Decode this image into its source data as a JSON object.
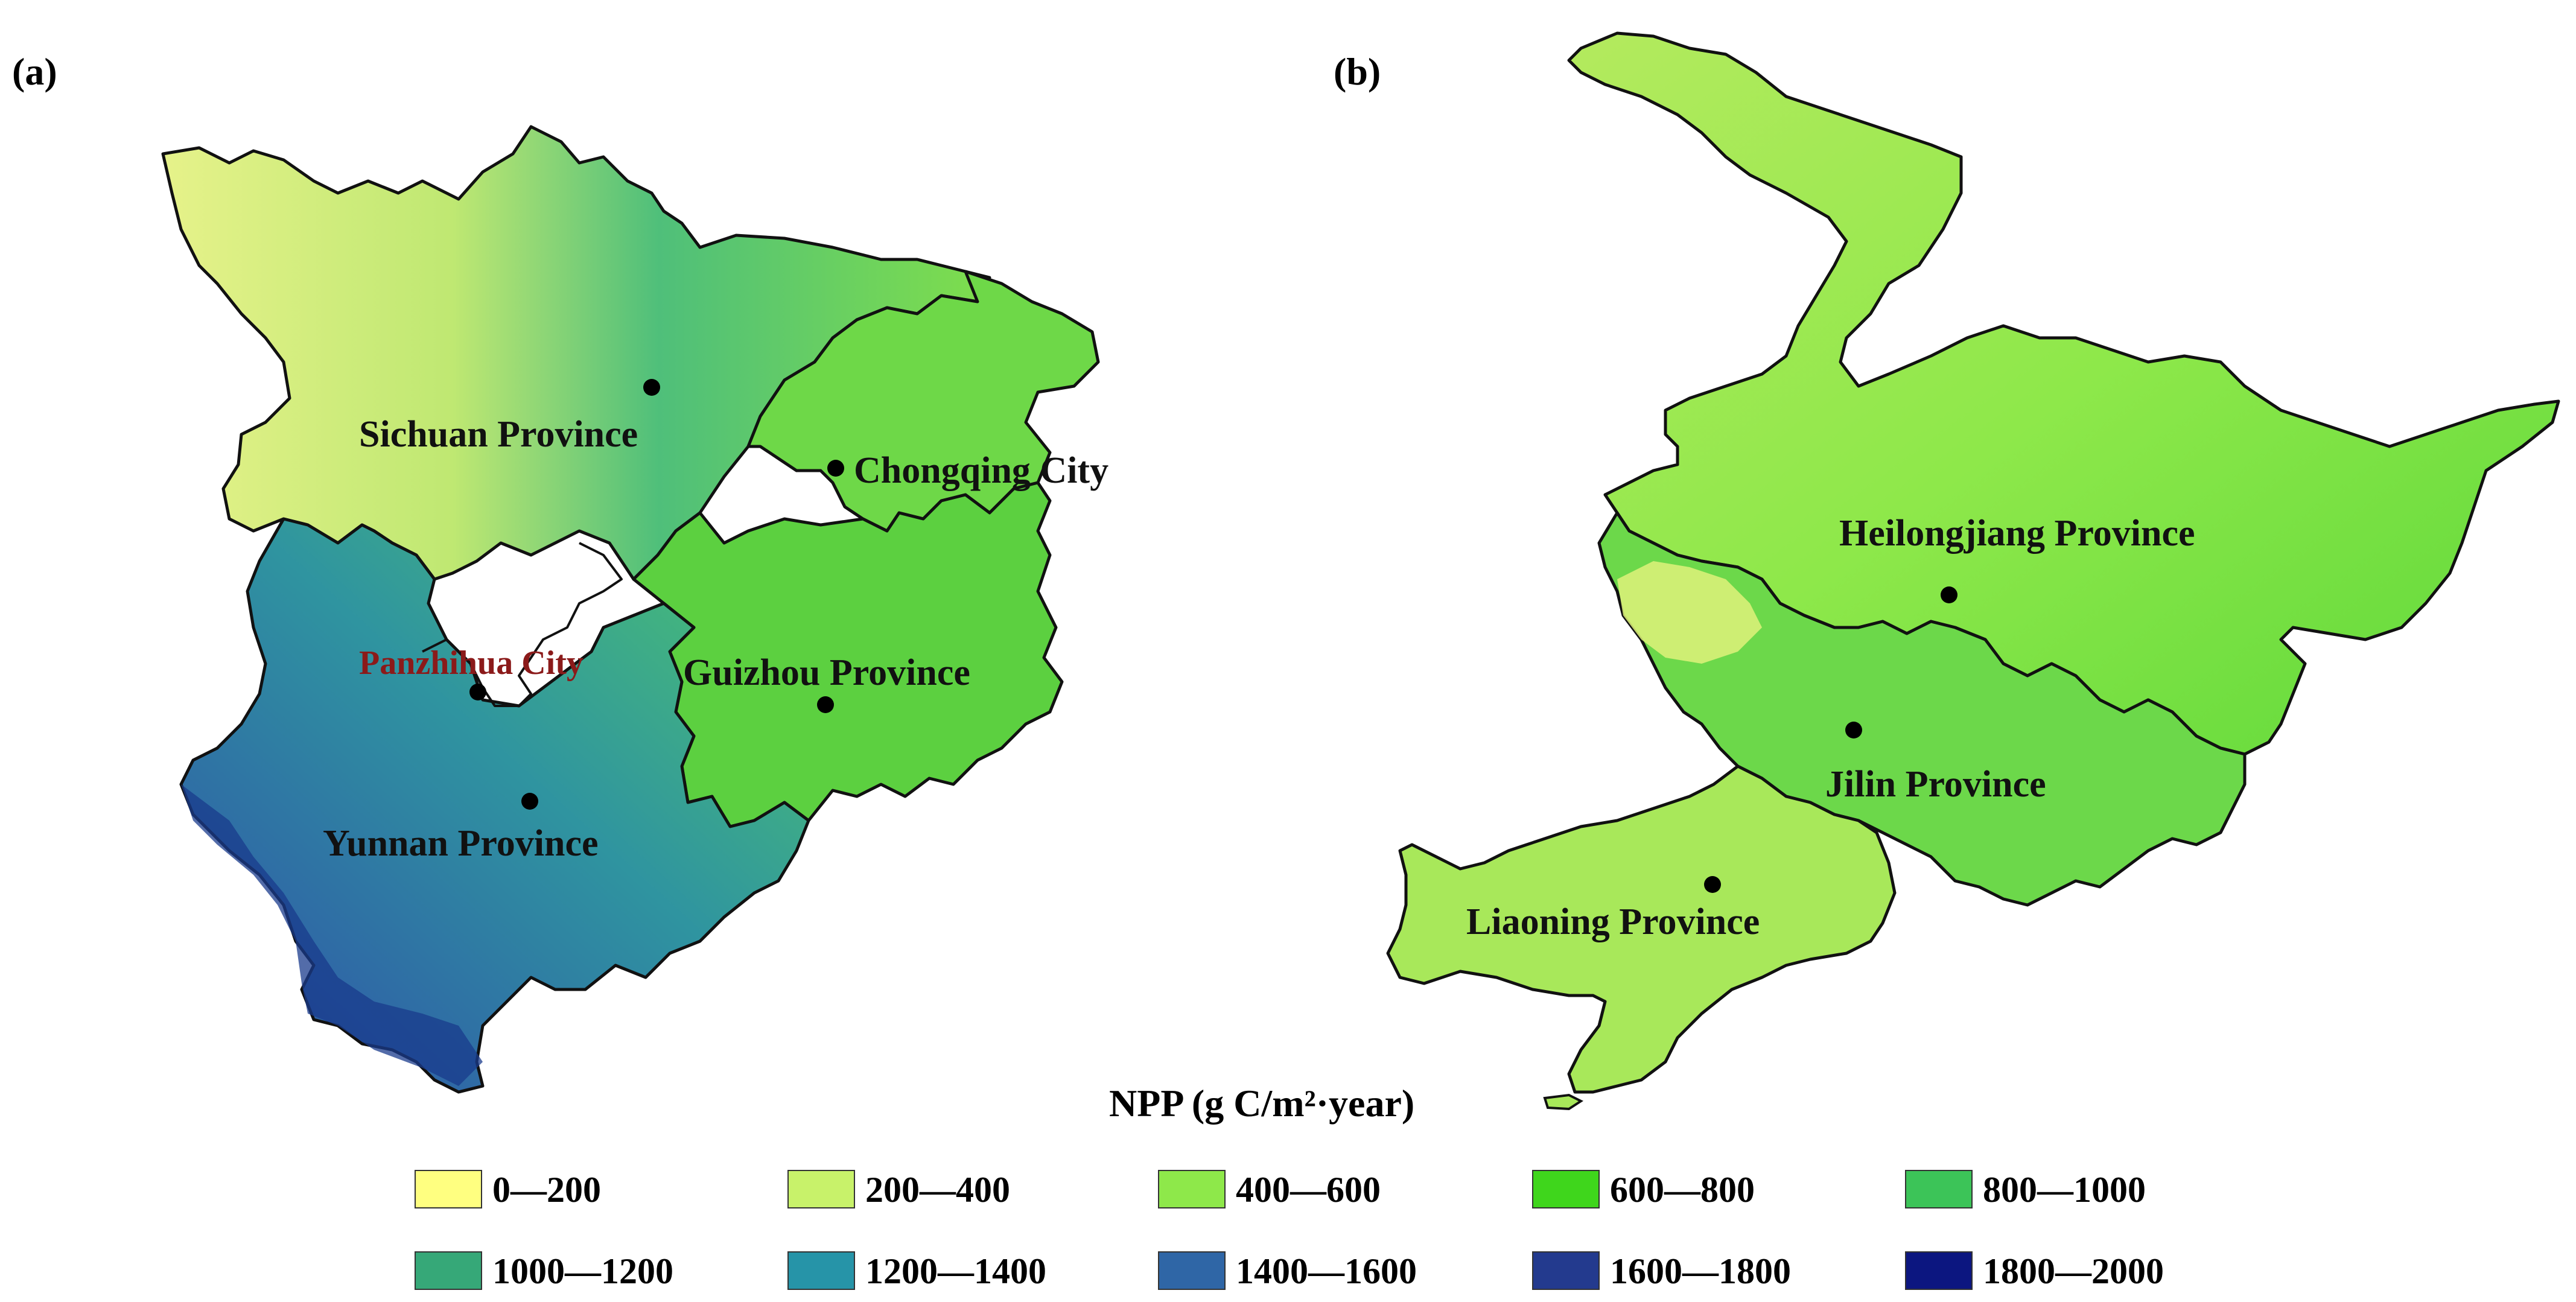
{
  "panels": [
    {
      "label": "(a)"
    },
    {
      "label": "(b)"
    }
  ],
  "panel_a": {
    "provinces": [
      {
        "name": "Sichuan Province"
      },
      {
        "name": "Chongqing City"
      },
      {
        "name": "Guizhou Province"
      },
      {
        "name": "Yunnan Province"
      }
    ],
    "highlight_city": {
      "name": "Panzhihua City",
      "color": "#8b1a1a"
    }
  },
  "panel_b": {
    "provinces": [
      {
        "name": "Heilongjiang Province"
      },
      {
        "name": "Jilin Province"
      },
      {
        "name": "Liaoning Province"
      }
    ]
  },
  "legend": {
    "title": "NPP (g C/m²·year)",
    "classes": [
      {
        "label": "0—200",
        "color": "#ffff80"
      },
      {
        "label": "200—400",
        "color": "#c8f26a"
      },
      {
        "label": "400—600",
        "color": "#8ee84a"
      },
      {
        "label": "600—800",
        "color": "#3fd61c"
      },
      {
        "label": "800—1000",
        "color": "#3cc458"
      },
      {
        "label": "1000—1200",
        "color": "#36a878"
      },
      {
        "label": "1200—1400",
        "color": "#2694a8"
      },
      {
        "label": "1400—1600",
        "color": "#2f66a6"
      },
      {
        "label": "1600—1800",
        "color": "#233a8e"
      },
      {
        "label": "1800—2000",
        "color": "#0c1680"
      }
    ]
  }
}
